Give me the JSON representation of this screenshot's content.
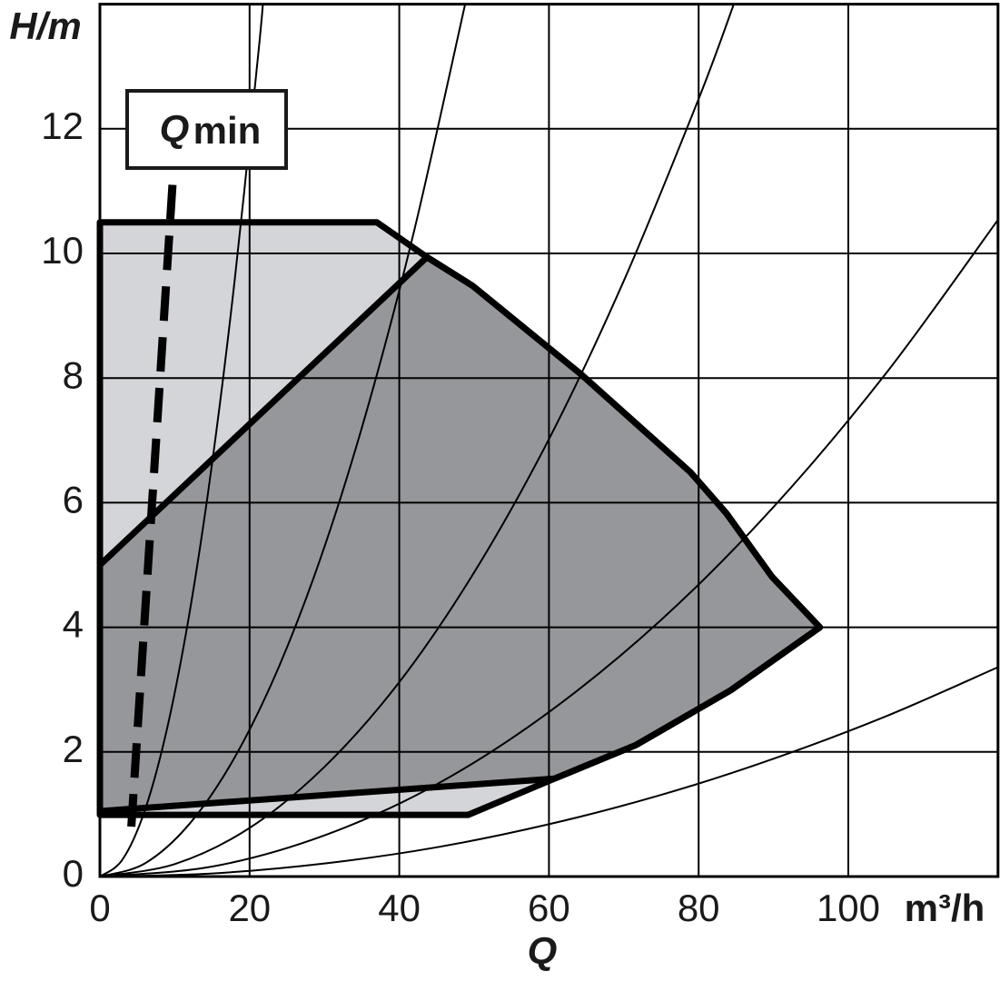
{
  "chart_data": {
    "type": "line",
    "y_label": "H/m",
    "x_label": "Q",
    "x_unit": "m³/h",
    "xlim": [
      0,
      120
    ],
    "ylim": [
      0,
      14
    ],
    "xticks": [
      0,
      20,
      40,
      60,
      80,
      100
    ],
    "yticks": [
      0,
      2,
      4,
      6,
      8,
      10,
      12
    ],
    "grid": true,
    "series": [
      {
        "color": "#000000",
        "x": [
          0,
          3,
          6,
          9,
          12,
          15,
          18,
          21,
          21.8
        ],
        "values": [
          0,
          0.27,
          1.06,
          2.39,
          4.25,
          6.64,
          9.56,
          13.01,
          14.02
        ]
      },
      {
        "color": "#000000",
        "x": [
          0,
          6,
          12,
          18,
          24,
          30,
          36,
          42,
          48.8
        ],
        "values": [
          0,
          0.21,
          0.85,
          1.91,
          3.39,
          5.29,
          7.62,
          10.37,
          14.0
        ]
      },
      {
        "color": "#000000",
        "x": [
          0,
          10,
          20,
          30,
          40,
          50,
          60,
          70,
          80,
          84.7
        ],
        "values": [
          0,
          0.2,
          0.78,
          1.76,
          3.12,
          4.88,
          7.02,
          9.56,
          12.48,
          14.0
        ]
      },
      {
        "color": "#000000",
        "x": [
          0,
          15,
          30,
          45,
          60,
          75,
          90,
          105,
          120
        ],
        "values": [
          0,
          0.16,
          0.66,
          1.48,
          2.64,
          4.12,
          5.93,
          8.07,
          10.54
        ]
      },
      {
        "color": "#000000",
        "x": [
          0,
          15,
          30,
          45,
          60,
          75,
          90,
          105,
          120
        ],
        "values": [
          0,
          0.05,
          0.21,
          0.47,
          0.84,
          1.31,
          1.89,
          2.57,
          3.36
        ]
      }
    ],
    "areas": [
      {
        "color": "#d4d5d9",
        "x": [
          0,
          37,
          43.7,
          49.8,
          64.3,
          78.9,
          83.7,
          89.8,
          96.2,
          84.3,
          71.6,
          60.7,
          49.2,
          0
        ],
        "values": [
          10.5,
          10.5,
          9.94,
          9.48,
          8.06,
          6.49,
          5.83,
          4.81,
          4.0,
          2.99,
          2.11,
          1.57,
          0.99,
          0.99
        ]
      },
      {
        "color": "#96979b",
        "x": [
          0,
          43.7,
          49.8,
          64.3,
          78.9,
          83.7,
          89.8,
          96.2,
          84.3,
          71.6,
          60.7,
          0
        ],
        "values": [
          5.0,
          9.94,
          9.48,
          8.06,
          6.49,
          5.83,
          4.81,
          4.0,
          2.99,
          2.11,
          1.57,
          1.05
        ]
      }
    ],
    "qmin": {
      "x": [
        9.7,
        4.2
      ],
      "values": [
        11.1,
        0.8
      ],
      "label": {
        "main": "Q",
        "subscript": "min"
      }
    }
  }
}
